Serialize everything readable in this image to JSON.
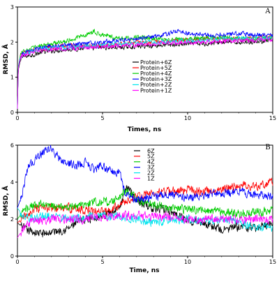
{
  "chart_data": [
    {
      "type": "line",
      "panel_label": "A",
      "xlabel": "Times, ns",
      "ylabel": "RMSD, Å",
      "xlim": [
        0,
        15
      ],
      "ylim": [
        0,
        3
      ],
      "xticks": [
        0,
        5,
        10,
        15
      ],
      "yticks": [
        0,
        1,
        2,
        3
      ],
      "grid": false,
      "legend_position": "center",
      "series": [
        {
          "name": "Protein+6Z",
          "color": "#000000",
          "points": [
            [
              0,
              0.1
            ],
            [
              0.05,
              1.2
            ],
            [
              0.2,
              1.55
            ],
            [
              0.5,
              1.6
            ],
            [
              1,
              1.65
            ],
            [
              1.5,
              1.72
            ],
            [
              2,
              1.75
            ],
            [
              3,
              1.8
            ],
            [
              4,
              1.82
            ],
            [
              5,
              1.85
            ],
            [
              6,
              1.85
            ],
            [
              7,
              1.88
            ],
            [
              8,
              1.9
            ],
            [
              9,
              1.92
            ],
            [
              10,
              1.95
            ],
            [
              11,
              1.95
            ],
            [
              12,
              2.0
            ],
            [
              13,
              2.0
            ],
            [
              14,
              2.02
            ],
            [
              15,
              2.05
            ]
          ]
        },
        {
          "name": "Protein+5Z",
          "color": "#ff0000",
          "points": [
            [
              0,
              0.1
            ],
            [
              0.05,
              1.3
            ],
            [
              0.2,
              1.65
            ],
            [
              0.5,
              1.7
            ],
            [
              1,
              1.78
            ],
            [
              1.5,
              1.82
            ],
            [
              2,
              1.85
            ],
            [
              3,
              1.9
            ],
            [
              4,
              1.88
            ],
            [
              5,
              1.9
            ],
            [
              6,
              1.95
            ],
            [
              7,
              2.0
            ],
            [
              8,
              2.0
            ],
            [
              9,
              2.05
            ],
            [
              10,
              2.05
            ],
            [
              11,
              2.1
            ],
            [
              12,
              2.08
            ],
            [
              13,
              2.1
            ],
            [
              14,
              2.12
            ],
            [
              15,
              2.15
            ]
          ]
        },
        {
          "name": "Protein+4Z",
          "color": "#00cc00",
          "points": [
            [
              0,
              0.1
            ],
            [
              0.05,
              1.3
            ],
            [
              0.2,
              1.7
            ],
            [
              0.5,
              1.75
            ],
            [
              1,
              1.85
            ],
            [
              1.5,
              1.9
            ],
            [
              2,
              1.95
            ],
            [
              3,
              2.05
            ],
            [
              4,
              2.2
            ],
            [
              4.5,
              2.3
            ],
            [
              5,
              2.2
            ],
            [
              6,
              2.1
            ],
            [
              7,
              2.15
            ],
            [
              8,
              2.1
            ],
            [
              9,
              2.05
            ],
            [
              10,
              2.1
            ],
            [
              11,
              2.1
            ],
            [
              12,
              2.15
            ],
            [
              13,
              2.1
            ],
            [
              14,
              2.1
            ],
            [
              15,
              2.1
            ]
          ]
        },
        {
          "name": "Protein+3Z",
          "color": "#0000ff",
          "points": [
            [
              0,
              0.1
            ],
            [
              0.05,
              1.3
            ],
            [
              0.2,
              1.65
            ],
            [
              0.5,
              1.7
            ],
            [
              1,
              1.8
            ],
            [
              1.5,
              1.85
            ],
            [
              2,
              1.88
            ],
            [
              3,
              1.92
            ],
            [
              4,
              1.95
            ],
            [
              5,
              2.0
            ],
            [
              6,
              2.05
            ],
            [
              7,
              2.1
            ],
            [
              8,
              2.15
            ],
            [
              9,
              2.25
            ],
            [
              9.5,
              2.35
            ],
            [
              10,
              2.25
            ],
            [
              11,
              2.2
            ],
            [
              12,
              2.2
            ],
            [
              13,
              2.25
            ],
            [
              14,
              2.2
            ],
            [
              15,
              2.2
            ]
          ]
        },
        {
          "name": "Protein+2Z",
          "color": "#00e5ee",
          "points": [
            [
              0,
              0.1
            ],
            [
              0.05,
              1.3
            ],
            [
              0.2,
              1.6
            ],
            [
              0.5,
              1.68
            ],
            [
              1,
              1.75
            ],
            [
              1.5,
              1.8
            ],
            [
              2,
              1.82
            ],
            [
              3,
              1.85
            ],
            [
              4,
              1.88
            ],
            [
              5,
              1.9
            ],
            [
              6,
              1.95
            ],
            [
              7,
              1.98
            ],
            [
              8,
              2.0
            ],
            [
              9,
              2.02
            ],
            [
              10,
              2.05
            ],
            [
              11,
              2.05
            ],
            [
              12,
              2.08
            ],
            [
              13,
              2.1
            ],
            [
              14,
              2.1
            ],
            [
              15,
              2.12
            ]
          ]
        },
        {
          "name": "Protein+1Z",
          "color": "#ff00ff",
          "points": [
            [
              0,
              0.1
            ],
            [
              0.05,
              1.25
            ],
            [
              0.2,
              1.6
            ],
            [
              0.5,
              1.65
            ],
            [
              1,
              1.72
            ],
            [
              1.5,
              1.78
            ],
            [
              2,
              1.8
            ],
            [
              3,
              1.82
            ],
            [
              4,
              1.85
            ],
            [
              5,
              1.88
            ],
            [
              6,
              1.9
            ],
            [
              7,
              1.92
            ],
            [
              8,
              1.95
            ],
            [
              9,
              1.98
            ],
            [
              10,
              2.0
            ],
            [
              11,
              2.0
            ],
            [
              12,
              2.02
            ],
            [
              13,
              2.05
            ],
            [
              14,
              2.05
            ],
            [
              15,
              2.08
            ]
          ]
        }
      ]
    },
    {
      "type": "line",
      "panel_label": "B",
      "xlabel": "Time, ns",
      "ylabel": "RMSD, Å",
      "xlim": [
        0,
        15
      ],
      "ylim": [
        0,
        6
      ],
      "xticks": [
        0,
        5,
        10,
        15
      ],
      "yticks": [
        0,
        2,
        4,
        6
      ],
      "grid": false,
      "legend_position": "top-center",
      "series": [
        {
          "name": "6Z",
          "color": "#000000",
          "points": [
            [
              0,
              1.8
            ],
            [
              0.5,
              1.4
            ],
            [
              1,
              1.3
            ],
            [
              1.5,
              1.2
            ],
            [
              2,
              1.3
            ],
            [
              2.5,
              1.4
            ],
            [
              3,
              1.5
            ],
            [
              3.5,
              1.8
            ],
            [
              4,
              2.0
            ],
            [
              5,
              2.2
            ],
            [
              6,
              2.6
            ],
            [
              6.5,
              3.8
            ],
            [
              7,
              3.0
            ],
            [
              8,
              2.6
            ],
            [
              9,
              2.4
            ],
            [
              10,
              2.0
            ],
            [
              11,
              1.8
            ],
            [
              12,
              1.4
            ],
            [
              13,
              1.6
            ],
            [
              14,
              1.5
            ],
            [
              15,
              1.8
            ]
          ]
        },
        {
          "name": "5Z",
          "color": "#ff0000",
          "points": [
            [
              0,
              1.8
            ],
            [
              0.5,
              2.2
            ],
            [
              1,
              2.5
            ],
            [
              2,
              2.6
            ],
            [
              3,
              2.6
            ],
            [
              4,
              2.5
            ],
            [
              5,
              2.4
            ],
            [
              6,
              2.8
            ],
            [
              7,
              3.2
            ],
            [
              8,
              3.4
            ],
            [
              9,
              3.5
            ],
            [
              10,
              3.6
            ],
            [
              11,
              3.5
            ],
            [
              12,
              3.6
            ],
            [
              13,
              3.8
            ],
            [
              14,
              3.8
            ],
            [
              15,
              4.0
            ]
          ]
        },
        {
          "name": "4Z",
          "color": "#00cc00",
          "points": [
            [
              0,
              2.0
            ],
            [
              0.5,
              2.6
            ],
            [
              1,
              2.8
            ],
            [
              2,
              2.7
            ],
            [
              3,
              2.6
            ],
            [
              4,
              2.8
            ],
            [
              5,
              3.0
            ],
            [
              5.5,
              2.9
            ],
            [
              6,
              3.2
            ],
            [
              6.5,
              3.6
            ],
            [
              7,
              3.0
            ],
            [
              8,
              2.8
            ],
            [
              9,
              2.6
            ],
            [
              10,
              2.5
            ],
            [
              11,
              2.5
            ],
            [
              12,
              2.4
            ],
            [
              13,
              2.3
            ],
            [
              14,
              2.4
            ],
            [
              15,
              2.4
            ]
          ]
        },
        {
          "name": "3Z",
          "color": "#0000ff",
          "points": [
            [
              0,
              2.6
            ],
            [
              0.3,
              3.4
            ],
            [
              0.6,
              4.8
            ],
            [
              1,
              5.2
            ],
            [
              1.5,
              5.6
            ],
            [
              2,
              5.8
            ],
            [
              2.5,
              5.2
            ],
            [
              3,
              5.0
            ],
            [
              3.5,
              4.9
            ],
            [
              4,
              5.1
            ],
            [
              4.5,
              4.7
            ],
            [
              5,
              4.9
            ],
            [
              5.5,
              4.6
            ],
            [
              6,
              4.5
            ],
            [
              6.3,
              3.5
            ],
            [
              7,
              3.0
            ],
            [
              8,
              3.2
            ],
            [
              9,
              3.3
            ],
            [
              10,
              3.2
            ],
            [
              11,
              3.3
            ],
            [
              12,
              3.4
            ],
            [
              13,
              3.5
            ],
            [
              14,
              3.3
            ],
            [
              15,
              3.2
            ]
          ]
        },
        {
          "name": "2Z",
          "color": "#00e5ee",
          "points": [
            [
              0,
              2.6
            ],
            [
              0.5,
              2.0
            ],
            [
              1,
              2.1
            ],
            [
              2,
              2.2
            ],
            [
              3,
              2.0
            ],
            [
              4,
              2.1
            ],
            [
              5,
              2.2
            ],
            [
              6,
              2.1
            ],
            [
              7,
              2.0
            ],
            [
              8,
              1.8
            ],
            [
              9,
              2.0
            ],
            [
              10,
              2.0
            ],
            [
              11,
              1.9
            ],
            [
              12,
              2.0
            ],
            [
              13,
              1.8
            ],
            [
              14,
              1.6
            ],
            [
              15,
              1.5
            ]
          ]
        },
        {
          "name": "1Z",
          "color": "#ff00ff",
          "points": [
            [
              0,
              1.0
            ],
            [
              0.5,
              1.7
            ],
            [
              1,
              1.9
            ],
            [
              2,
              2.0
            ],
            [
              3,
              2.0
            ],
            [
              4,
              2.0
            ],
            [
              5,
              2.1
            ],
            [
              6,
              2.2
            ],
            [
              7,
              2.2
            ],
            [
              8,
              2.1
            ],
            [
              9,
              2.1
            ],
            [
              10,
              2.0
            ],
            [
              11,
              2.0
            ],
            [
              12,
              2.0
            ],
            [
              13,
              2.0
            ],
            [
              14,
              2.0
            ],
            [
              15,
              2.0
            ]
          ]
        }
      ]
    }
  ]
}
